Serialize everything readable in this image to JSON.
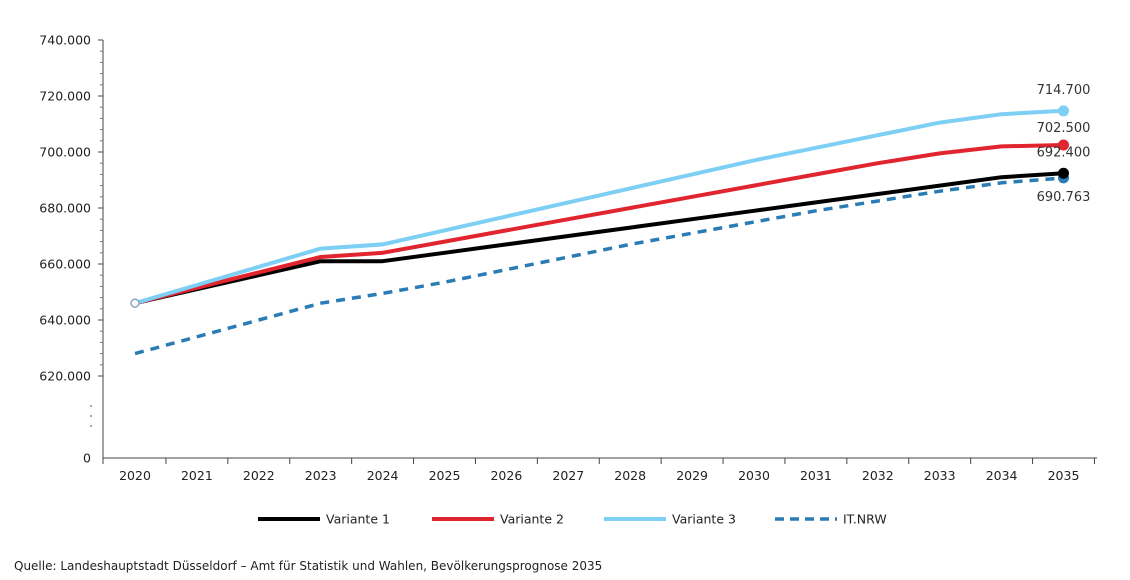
{
  "chart_data": {
    "type": "line",
    "x": [
      2020,
      2021,
      2022,
      2023,
      2024,
      2025,
      2026,
      2027,
      2028,
      2029,
      2030,
      2031,
      2032,
      2033,
      2034,
      2035
    ],
    "x_tick_labels": [
      "2020",
      "2021",
      "2022",
      "2023",
      "2024",
      "2025",
      "2026",
      "2027",
      "2028",
      "2029",
      "2030",
      "2031",
      "2032",
      "2033",
      "2034",
      "2035"
    ],
    "y_tick_labels": [
      "740.000",
      "720.000",
      "700.000",
      "680.000",
      "660.000",
      "640.000",
      "620.000",
      "0"
    ],
    "y_ticks": [
      740000,
      720000,
      700000,
      680000,
      660000,
      640000,
      620000
    ],
    "ylim": [
      606000,
      740000
    ],
    "y_axis_break": true,
    "series": [
      {
        "name": "Variante 1",
        "color": "#000000",
        "dash": false,
        "values": [
          646000,
          651000,
          656000,
          661000,
          661000,
          664000,
          667000,
          670000,
          673000,
          676000,
          679000,
          682000,
          685000,
          688000,
          691000,
          692400
        ],
        "end_label": "692.400"
      },
      {
        "name": "Variante 2",
        "color": "#e0252f",
        "dash": false,
        "values": [
          646000,
          651500,
          657000,
          662500,
          664000,
          668000,
          672000,
          676000,
          680000,
          684000,
          688000,
          692000,
          696000,
          699500,
          702000,
          702500
        ],
        "end_label": "702.500"
      },
      {
        "name": "Variante 3",
        "color": "#7dcff3",
        "dash": false,
        "values": [
          646000,
          652500,
          659000,
          665500,
          667000,
          672000,
          677000,
          682000,
          687000,
          692000,
          697000,
          701500,
          706000,
          710500,
          713500,
          714700
        ],
        "end_label": "714.700"
      },
      {
        "name": "IT.NRW",
        "color": "#2b7bb5",
        "dash": true,
        "values": [
          628000,
          634000,
          640000,
          646000,
          649500,
          653500,
          658000,
          662500,
          667000,
          671000,
          675000,
          679000,
          682500,
          686000,
          689000,
          690763
        ],
        "end_label": "690.763"
      }
    ],
    "legend_position": "bottom",
    "grid": false
  },
  "source": "Quelle: Landeshauptstadt Düsseldorf – Amt für Statistik und Wahlen, Bevölkerungsprognose 2035"
}
